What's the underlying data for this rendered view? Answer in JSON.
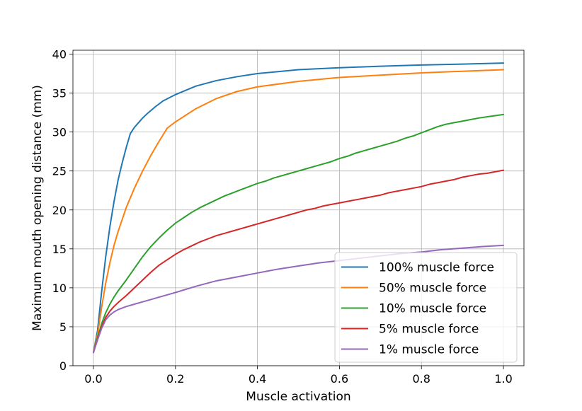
{
  "chart_data": {
    "type": "line",
    "title": "",
    "xlabel": "Muscle activation",
    "ylabel": "Maximum mouth opening distance (mm)",
    "xlim": [
      -0.05,
      1.05
    ],
    "ylim": [
      0,
      40.5
    ],
    "xticks": [
      0.0,
      0.2,
      0.4,
      0.6,
      0.8,
      1.0
    ],
    "xtick_labels": [
      "0.0",
      "0.2",
      "0.4",
      "0.6",
      "0.8",
      "1.0"
    ],
    "yticks": [
      0,
      5,
      10,
      15,
      20,
      25,
      30,
      35,
      40
    ],
    "ytick_labels": [
      "0",
      "5",
      "10",
      "15",
      "20",
      "25",
      "30",
      "35",
      "40"
    ],
    "grid": true,
    "legend_position": "lower-right",
    "series": [
      {
        "name": "100% muscle force",
        "color": "#1f77b4",
        "x": [
          0,
          0.01,
          0.02,
          0.03,
          0.04,
          0.05,
          0.06,
          0.07,
          0.08,
          0.09,
          0.1,
          0.11,
          0.12,
          0.13,
          0.15,
          0.17,
          0.2,
          0.25,
          0.3,
          0.35,
          0.4,
          0.5,
          0.6,
          0.7,
          0.8,
          0.9,
          1.0
        ],
        "y": [
          1.7,
          4.5,
          9.5,
          14.0,
          17.8,
          21.0,
          23.8,
          26.0,
          28.0,
          29.8,
          30.6,
          31.2,
          31.8,
          32.3,
          33.2,
          34.0,
          34.8,
          35.9,
          36.6,
          37.1,
          37.5,
          38.0,
          38.25,
          38.45,
          38.6,
          38.72,
          38.85
        ]
      },
      {
        "name": "50% muscle force",
        "color": "#ff7f0e",
        "x": [
          0,
          0.01,
          0.02,
          0.03,
          0.04,
          0.05,
          0.06,
          0.08,
          0.1,
          0.12,
          0.14,
          0.16,
          0.18,
          0.2,
          0.25,
          0.3,
          0.35,
          0.4,
          0.5,
          0.6,
          0.7,
          0.8,
          0.9,
          1.0
        ],
        "y": [
          1.7,
          4.0,
          7.5,
          10.6,
          13.2,
          15.4,
          17.2,
          20.3,
          22.8,
          25.0,
          27.0,
          28.8,
          30.5,
          31.3,
          33.0,
          34.3,
          35.2,
          35.8,
          36.5,
          37.0,
          37.3,
          37.6,
          37.8,
          38.0
        ]
      },
      {
        "name": "10% muscle force",
        "color": "#2ca02c",
        "x": [
          0,
          0.01,
          0.02,
          0.03,
          0.04,
          0.05,
          0.06,
          0.08,
          0.1,
          0.12,
          0.14,
          0.16,
          0.18,
          0.2,
          0.22,
          0.24,
          0.26,
          0.28,
          0.3,
          0.32,
          0.34,
          0.36,
          0.38,
          0.4,
          0.42,
          0.44,
          0.46,
          0.48,
          0.5,
          0.52,
          0.54,
          0.56,
          0.58,
          0.6,
          0.62,
          0.64,
          0.66,
          0.68,
          0.7,
          0.72,
          0.74,
          0.76,
          0.78,
          0.8,
          0.82,
          0.84,
          0.86,
          0.88,
          0.9,
          0.92,
          0.94,
          0.96,
          0.98,
          1.0
        ],
        "y": [
          1.7,
          3.6,
          5.4,
          6.8,
          7.9,
          8.8,
          9.6,
          11.0,
          12.5,
          14.0,
          15.3,
          16.4,
          17.4,
          18.3,
          19.0,
          19.7,
          20.3,
          20.8,
          21.3,
          21.8,
          22.2,
          22.6,
          23.0,
          23.4,
          23.7,
          24.1,
          24.4,
          24.7,
          25.0,
          25.3,
          25.6,
          25.9,
          26.2,
          26.6,
          26.9,
          27.3,
          27.6,
          27.9,
          28.2,
          28.5,
          28.8,
          29.2,
          29.5,
          29.9,
          30.3,
          30.7,
          31.0,
          31.2,
          31.4,
          31.6,
          31.8,
          31.95,
          32.1,
          32.25
        ]
      },
      {
        "name": "5% muscle force",
        "color": "#d62728",
        "x": [
          0,
          0.01,
          0.02,
          0.03,
          0.04,
          0.05,
          0.06,
          0.08,
          0.1,
          0.12,
          0.14,
          0.16,
          0.18,
          0.2,
          0.22,
          0.24,
          0.26,
          0.28,
          0.3,
          0.32,
          0.34,
          0.36,
          0.38,
          0.4,
          0.42,
          0.44,
          0.46,
          0.48,
          0.5,
          0.52,
          0.54,
          0.56,
          0.58,
          0.6,
          0.62,
          0.64,
          0.66,
          0.68,
          0.7,
          0.72,
          0.74,
          0.76,
          0.78,
          0.8,
          0.82,
          0.84,
          0.86,
          0.88,
          0.9,
          0.92,
          0.94,
          0.96,
          0.98,
          1.0
        ],
        "y": [
          1.7,
          3.4,
          5.0,
          6.2,
          7.0,
          7.6,
          8.1,
          9.0,
          10.0,
          11.0,
          12.0,
          12.9,
          13.6,
          14.3,
          14.9,
          15.4,
          15.9,
          16.3,
          16.7,
          17.0,
          17.3,
          17.6,
          17.9,
          18.2,
          18.5,
          18.8,
          19.1,
          19.4,
          19.7,
          20.0,
          20.2,
          20.5,
          20.7,
          20.9,
          21.1,
          21.3,
          21.5,
          21.7,
          21.9,
          22.2,
          22.4,
          22.6,
          22.8,
          23.0,
          23.3,
          23.5,
          23.7,
          23.9,
          24.2,
          24.4,
          24.6,
          24.7,
          24.9,
          25.1
        ]
      },
      {
        "name": "1% muscle force",
        "color": "#9467bd",
        "x": [
          0,
          0.01,
          0.02,
          0.03,
          0.04,
          0.05,
          0.06,
          0.08,
          0.1,
          0.12,
          0.14,
          0.16,
          0.18,
          0.2,
          0.25,
          0.3,
          0.35,
          0.4,
          0.45,
          0.5,
          0.55,
          0.6,
          0.65,
          0.7,
          0.75,
          0.8,
          0.85,
          0.9,
          0.95,
          1.0
        ],
        "y": [
          1.7,
          3.3,
          4.8,
          5.9,
          6.5,
          6.9,
          7.2,
          7.6,
          7.9,
          8.2,
          8.5,
          8.8,
          9.1,
          9.4,
          10.2,
          10.9,
          11.4,
          11.9,
          12.4,
          12.8,
          13.2,
          13.5,
          13.8,
          14.1,
          14.4,
          14.6,
          14.9,
          15.1,
          15.3,
          15.45
        ]
      }
    ]
  }
}
